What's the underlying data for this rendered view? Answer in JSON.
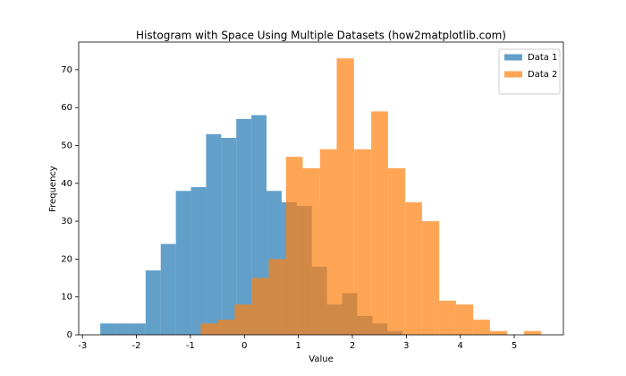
{
  "chart_data": {
    "type": "histogram",
    "title": "Histogram with Space Using Multiple Datasets (how2matplotlib.com)",
    "xlabel": "Value",
    "ylabel": "Frequency",
    "xlim": [
      -3.07,
      5.91
    ],
    "ylim": [
      0,
      77.3
    ],
    "xticks": [
      -3,
      -2,
      -1,
      0,
      1,
      2,
      3,
      4,
      5
    ],
    "yticks": [
      0,
      10,
      20,
      30,
      40,
      50,
      60,
      70
    ],
    "legend": "upper right",
    "alpha": 0.7,
    "series": [
      {
        "name": "Data 1",
        "color": "#1f77b4",
        "bins": [
          -2.67,
          -2.39,
          -2.11,
          -1.83,
          -1.55,
          -1.27,
          -0.99,
          -0.71,
          -0.43,
          -0.15,
          0.13,
          0.41,
          0.69,
          0.97,
          1.25,
          1.53,
          1.81,
          2.09,
          2.37,
          2.65,
          2.93
        ],
        "values": [
          3,
          3,
          3,
          17,
          24,
          38,
          39,
          53,
          52,
          57,
          58,
          38,
          35,
          34,
          18,
          8,
          11,
          5,
          3,
          1
        ]
      },
      {
        "name": "Data 2",
        "color": "#ff7f0e",
        "bins": [
          -0.81,
          -0.49,
          -0.18,
          0.14,
          0.45,
          0.77,
          1.08,
          1.4,
          1.71,
          2.03,
          2.35,
          2.66,
          2.98,
          3.29,
          3.61,
          3.92,
          4.24,
          4.55,
          4.87,
          5.18,
          5.5
        ],
        "values": [
          3,
          4,
          8,
          15,
          20,
          47,
          44,
          49,
          73,
          49,
          59,
          44,
          35,
          30,
          9,
          8,
          4,
          1,
          0,
          1
        ]
      }
    ]
  }
}
